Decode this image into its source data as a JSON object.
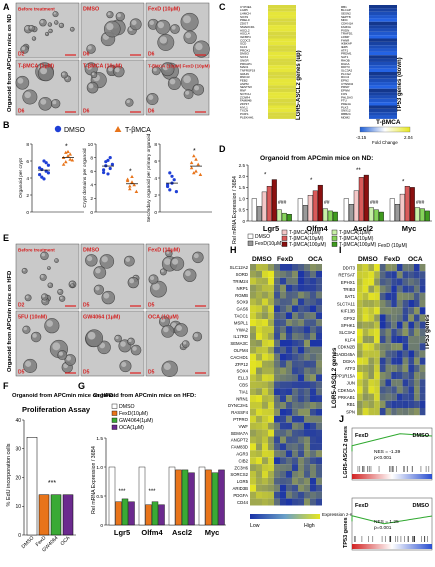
{
  "panels": {
    "A": "A",
    "B": "B",
    "C": "C",
    "D": "D",
    "E": "E",
    "F": "F",
    "G": "G",
    "H": "H",
    "I": "I",
    "J": "J"
  },
  "panel_a": {
    "side_label": "Organoid from APCmin mice on ND",
    "tiles": [
      {
        "label": "Before treatment",
        "day": "D2"
      },
      {
        "label": "DMSO",
        "day": "D6"
      },
      {
        "label": "FexD (10μM)",
        "day": "D6"
      },
      {
        "label": "T-βMCA (1μM)",
        "day": "D6"
      },
      {
        "label": "T-βMCA (10μM)",
        "day": "D6"
      },
      {
        "label": "T-βMCA (10μM) FexD (10μM)",
        "day": "D6"
      }
    ]
  },
  "panel_b": {
    "legend": [
      {
        "name": "DMSO",
        "color": "#1f3fd6"
      },
      {
        "name": "T-βMCA",
        "color": "#e8741a"
      }
    ],
    "star": "*",
    "charts": [
      {
        "ylabel": "Organoid per crypt",
        "ticks": [
          "0",
          "2",
          "4",
          "6",
          "8"
        ],
        "ylim": [
          0,
          8
        ],
        "dmso": [
          5.2,
          4.1,
          6.0,
          4.8,
          5.5,
          4.4,
          5.0,
          3.9,
          5.8,
          4.6
        ],
        "tbmca": [
          6.4,
          5.9,
          7.1,
          6.8,
          6.1,
          5.6,
          7.0,
          6.6,
          6.2
        ]
      },
      {
        "ylabel": "Crypt domains per organoid",
        "ticks": [
          "0",
          "2",
          "4",
          "6",
          "8",
          "10"
        ],
        "ylim": [
          0,
          10
        ],
        "dmso": [
          6.2,
          7.4,
          5.6,
          8.0,
          7.0,
          5.8,
          6.8,
          7.6,
          6.4
        ],
        "tbmca": [
          4.6,
          3.4,
          5.2,
          4.0,
          3.0,
          4.8,
          3.8,
          4.4
        ]
      },
      {
        "ylabel": "Secondary organoid per primary organoid",
        "ticks": [
          "0",
          "2",
          "4",
          "6",
          "8"
        ],
        "ylim": [
          0,
          8
        ],
        "dmso": [
          3.2,
          2.6,
          4.2,
          3.8,
          2.4,
          3.0,
          4.6,
          3.4
        ],
        "tbmca": [
          5.2,
          4.6,
          6.2,
          5.6,
          4.4,
          5.8,
          6.6,
          4.8
        ]
      }
    ]
  },
  "panel_c": {
    "left_label": "LGR5-ASCL2 genes (up)",
    "right_label": "TP53 genes (down)",
    "left_genes": [
      "CYP3E1",
      "LGR5",
      "LHMCH",
      "SOX9",
      "PREL0",
      "ZDGT",
      "SMARCD1",
      "ASCL2",
      "ASCL4",
      "IGFBP4",
      "CCDC3",
      "SCD",
      "KLF4",
      "PROX1",
      "DMSO",
      "SOX4",
      "SNGR",
      "PRKAP1",
      "MAD1",
      "TNFRSF19",
      "GRHN",
      "RNF43",
      "FEB2",
      "ASPM",
      "SESTNX",
      "RNF",
      "NOTCH",
      "ZCNR4",
      "FAM84B",
      "ZFP37",
      "MYL1",
      "TXCN",
      "PCRS",
      "PLEKHH1"
    ],
    "right_genes": [
      "RB1",
      "BLCAP",
      "SESN2",
      "SEPT8",
      "MDC",
      "CDKN1A",
      "FAM3A",
      "PXDN",
      "TRAFD1",
      "LRMP",
      "FHNR",
      "IKBKAP",
      "IER5",
      "ATF1",
      "PRDM1",
      "SAT1",
      "RHOB",
      "DGKA",
      "DDIT3",
      "SLC3A2",
      "PLCG2",
      "RCC2",
      "EPN2",
      "CTNND2",
      "PRNP",
      "EPNM",
      "FOS",
      "PHLDA3",
      "FTU",
      "PDE4A",
      "PLK3",
      "SNX12",
      "RBB24",
      "MDM2"
    ],
    "legend_title": "T-βMCA",
    "legend_min": "-3.15",
    "legend_max": "2.04",
    "legend_caption": "Fold Change"
  },
  "panel_d": {
    "title": "Organoid from APCmin mice on ND:",
    "ylabel": "Rel mRNA Expression / 36B4",
    "ticks": [
      "0",
      "0.5",
      "1.0",
      "1.5",
      "2.0",
      "2.5"
    ],
    "ylim": [
      0,
      2.5
    ],
    "genes": [
      "Lgr5",
      "Olfm4",
      "Ascl2",
      "Myc"
    ],
    "star_label": "*",
    "dstar_label": "**",
    "hash_label": "###",
    "hash2_label": "##",
    "groups": [
      {
        "name": "DMSO",
        "color": "#ffffff"
      },
      {
        "name": "FexD(10μM)",
        "color": "#9a9a9a"
      },
      {
        "name": "T-βMCA(1μM)",
        "color": "#f4c7c7"
      },
      {
        "name": "T-βMCA(10μM)",
        "color": "#d95a5a"
      },
      {
        "name": "T-βMCA(100μM)",
        "color": "#8b1010"
      },
      {
        "name": "T-βMCA(1μM)",
        "color": "#c8f0a8"
      },
      {
        "name": "T-βMCA(10μM)",
        "color": "#86d35a"
      },
      {
        "name": "T-βMCA(100μM)",
        "color": "#3f9a1e"
      }
    ],
    "fexd_label": "FexD (10μM)",
    "values": [
      [
        1.0,
        0.65,
        1.3,
        1.55,
        1.85,
        0.5,
        0.35,
        0.3
      ],
      [
        1.0,
        0.7,
        1.15,
        1.35,
        1.6,
        0.55,
        0.45,
        0.4
      ],
      [
        1.0,
        0.75,
        1.35,
        1.95,
        2.05,
        0.6,
        0.5,
        0.4
      ],
      [
        1.0,
        0.75,
        1.2,
        1.55,
        1.5,
        0.6,
        0.55,
        0.45
      ]
    ]
  },
  "panel_e": {
    "side_label": "Organoid from APCmin mice on HFD",
    "tiles": [
      {
        "label": "Before treatment",
        "day": "D2"
      },
      {
        "label": "DMSO",
        "day": "D5"
      },
      {
        "label": "FexD (10μM)",
        "day": "D5"
      },
      {
        "label": "5FU (10nM)",
        "day": "D5"
      },
      {
        "label": "GW4064 (1μM)",
        "day": "D5"
      },
      {
        "label": "OCA (10μM)",
        "day": "D5"
      }
    ]
  },
  "panel_f": {
    "title": "Organoid from APCmin mice on HFD:",
    "chart_title": "Proliferation Assay",
    "ylabel": "% EdU incorporation cells",
    "ticks": [
      "0",
      "10",
      "20",
      "30",
      "40"
    ],
    "ylim": [
      0,
      40
    ],
    "categories": [
      "DMSO",
      "FexD",
      "GW4064",
      "OCA"
    ],
    "values": [
      34,
      14,
      14,
      14
    ],
    "colors": [
      "#ffffff",
      "#e8741a",
      "#3aaa35",
      "#6b2a8e"
    ],
    "sig": "***"
  },
  "panel_g": {
    "title": "Organoid from APCmin mice on HFD:",
    "ylabel": "Rel mRNA Expression / 36B4",
    "ticks": [
      "0",
      "0.5",
      "1.0",
      "1.5"
    ],
    "ylim": [
      0,
      1.5
    ],
    "legend": [
      {
        "name": "DMSO",
        "color": "#ffffff"
      },
      {
        "name": "FexD(10μM)",
        "color": "#e8741a"
      },
      {
        "name": "GW4064(1μM)",
        "color": "#3aaa35"
      },
      {
        "name": "OCA(1μM)",
        "color": "#6b2a8e"
      }
    ],
    "genes": [
      "Lgr5",
      "Olfm4",
      "Ascl2",
      "Myc"
    ],
    "values": [
      [
        1.0,
        0.4,
        0.45,
        0.4
      ],
      [
        1.0,
        0.35,
        0.4,
        0.35
      ],
      [
        1.0,
        0.95,
        0.95,
        0.9
      ],
      [
        1.0,
        0.95,
        0.9,
        0.95
      ]
    ],
    "sig": "***"
  },
  "panel_h": {
    "headers": [
      "DMSO",
      "FexD",
      "OCA"
    ],
    "genes": [
      "SLC12A2",
      "SORD",
      "TRIM24",
      "NRP1",
      "RGMB",
      "SOX9",
      "GAS6",
      "TACC1",
      "MSPL1",
      "YWA2",
      "IL17RD",
      "SEMA3C",
      "OLFM4",
      "CACHD1",
      "ZFP12",
      "SOX4",
      "ELL3",
      "CBS",
      "TIA1",
      "NRN1",
      "DYNC2H1",
      "RASSF4",
      "PTPRO",
      "VWF",
      "SEMA7A",
      "ANGPT2",
      "FAM83D",
      "AGR3",
      "CIB2",
      "ZC3H6",
      "SORCS2",
      "LGR5",
      "ARID3B",
      "PDGFA",
      "CD44"
    ],
    "side": "LGR5-ASCL2 genes",
    "low": "Low",
    "high": "High",
    "expr": "Expression z-score"
  },
  "panel_i": {
    "headers": [
      "DMSO",
      "FexD",
      "OCA"
    ],
    "genes": [
      "DDIT3",
      "RETSAT",
      "EPHX1",
      "TRIB3",
      "SAT1",
      "SLC7A11",
      "KIF13B",
      "GPX2",
      "SPHK1",
      "SLC3A2",
      "KLF4",
      "CDKN2B",
      "GADD45A",
      "DGKA",
      "ATF3",
      "PPP1R15A",
      "JUN",
      "CDKN1A",
      "PRKAB1",
      "RB1",
      "SPN"
    ],
    "side": "TP53 genes"
  },
  "panel_j": {
    "plots": [
      {
        "side": "LGR5-ASCL2 genes",
        "left": "FexD",
        "right": "DMSO",
        "nes": "NES = -1.39",
        "p": "p<0.001"
      },
      {
        "side": "TP53 genes",
        "left": "FexD",
        "right": "DMSO",
        "nes": "NES = 1.25",
        "p": "p=0.001"
      }
    ]
  },
  "colors": {
    "scale_bar": "#e02020",
    "tile_label": "#d42020"
  }
}
